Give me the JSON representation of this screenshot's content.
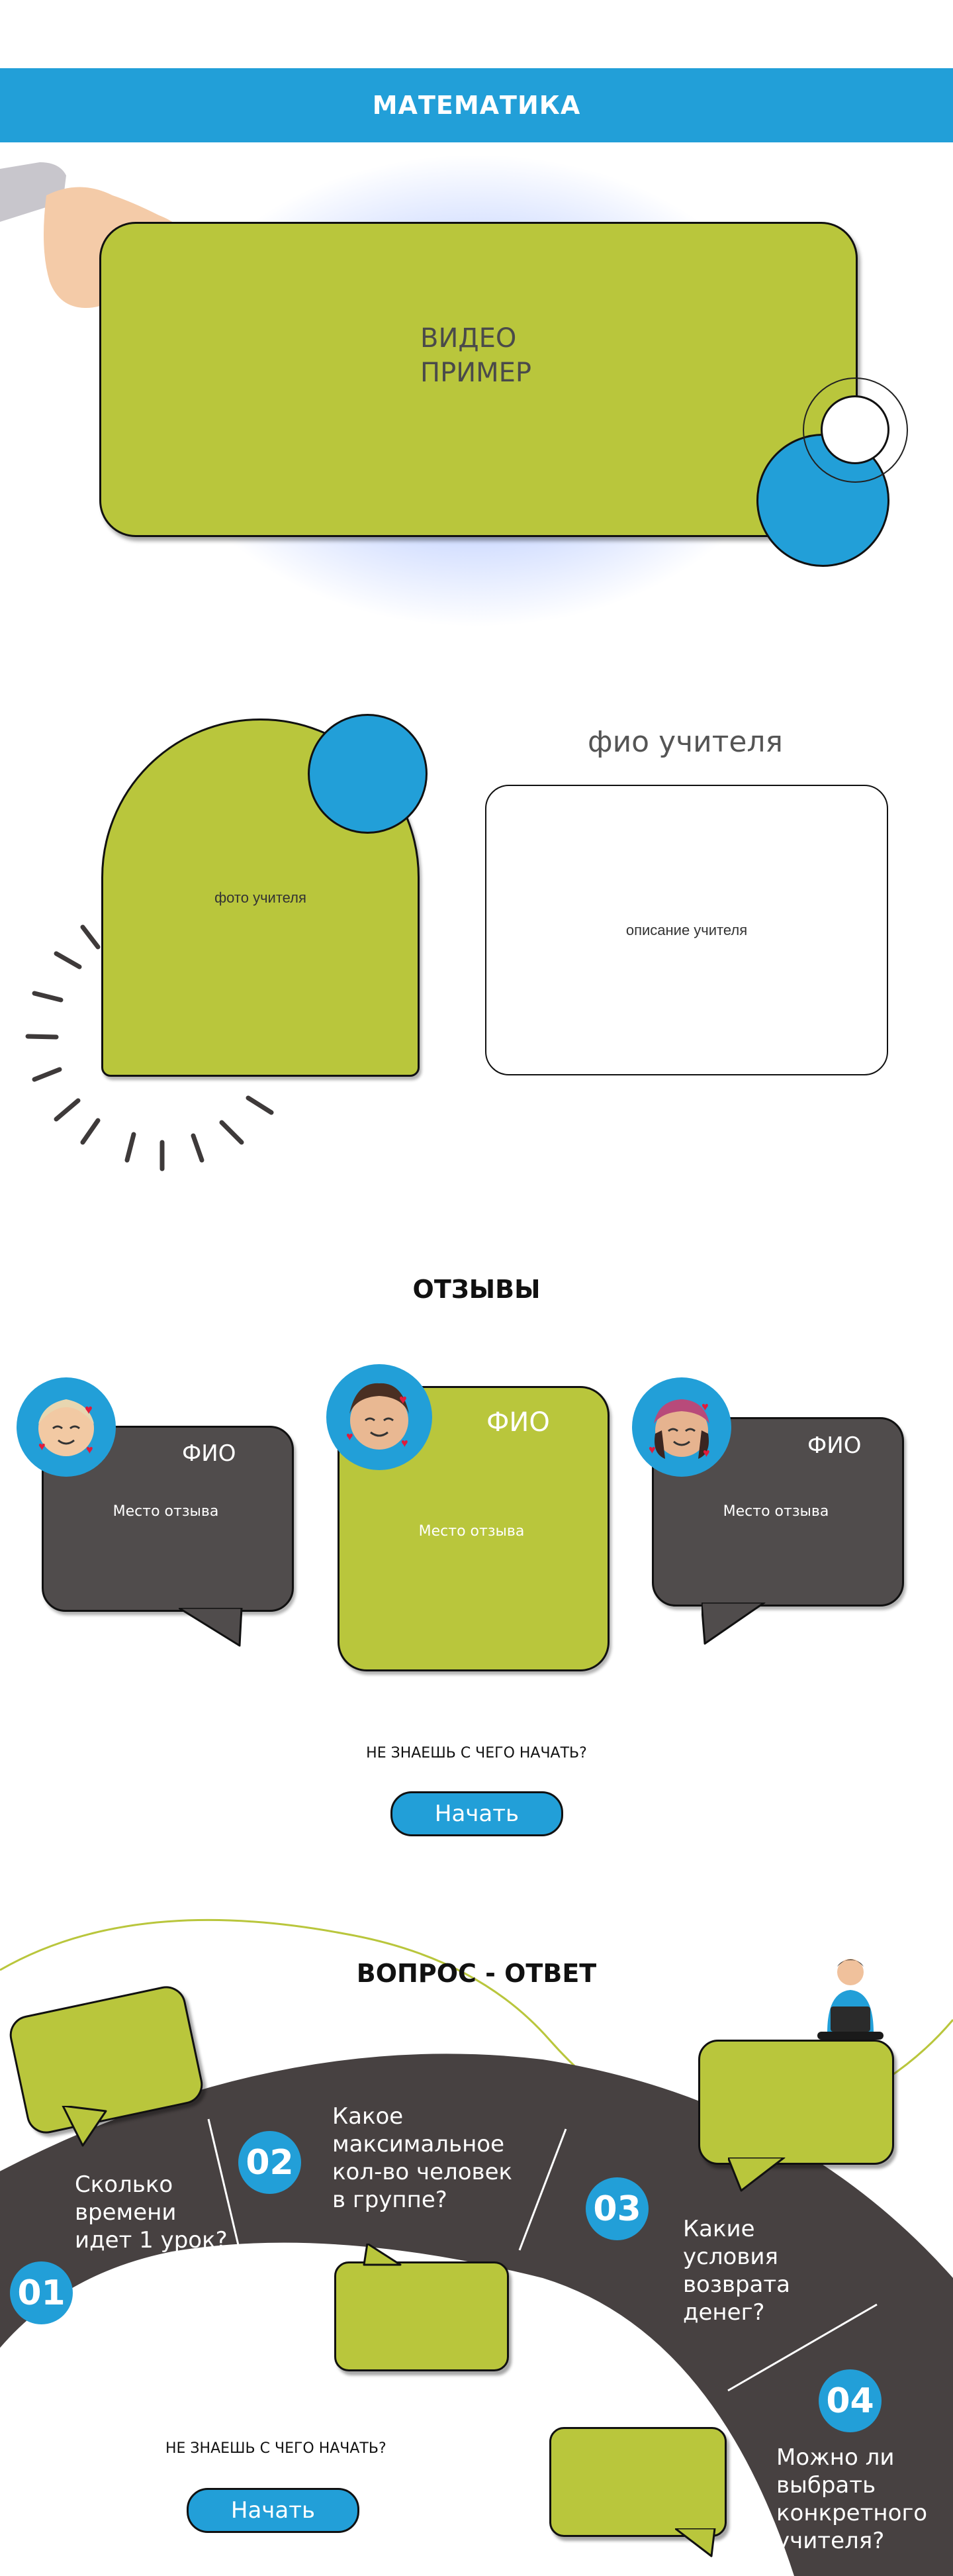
{
  "header": {
    "title": "МАТЕМАТИКА"
  },
  "video": {
    "label": "ВИДЕО\nПРИМЕР"
  },
  "teacher": {
    "name": "фио учителя",
    "photo_label": "фото учителя",
    "description_label": "описание учителя"
  },
  "reviews": {
    "title": "ОТЗЫВЫ",
    "items": [
      {
        "name": "ФИО",
        "text": "Место отзыва"
      },
      {
        "name": "ФИО",
        "text": "Место отзыва"
      },
      {
        "name": "ФИО",
        "text": "Место отзыва"
      }
    ]
  },
  "cta": {
    "question": "НЕ ЗНАЕШЬ С ЧЕГО НАЧАТЬ?",
    "button_label": "Начать"
  },
  "faq": {
    "title": "ВОПРОС - ОТВЕТ",
    "items": [
      {
        "number": "01",
        "question": "Сколько\nвремени\nидет 1 урок?"
      },
      {
        "number": "02",
        "question": "Какое\nмаксимальное\nкол-во человек\nв группе?"
      },
      {
        "number": "03",
        "question": "Какие\nусловия\nвозврата\nденег?"
      },
      {
        "number": "04",
        "question": "Можно ли\nвыбрать\nконкретного\nучителя?"
      }
    ]
  },
  "cta_bottom": {
    "question": "НЕ ЗНАЕШЬ С ЧЕГО НАЧАТЬ?",
    "button_label": "Начать"
  },
  "colors": {
    "accent_blue": "#229fd8",
    "accent_green": "#b9c63c",
    "dark": "#474141"
  }
}
